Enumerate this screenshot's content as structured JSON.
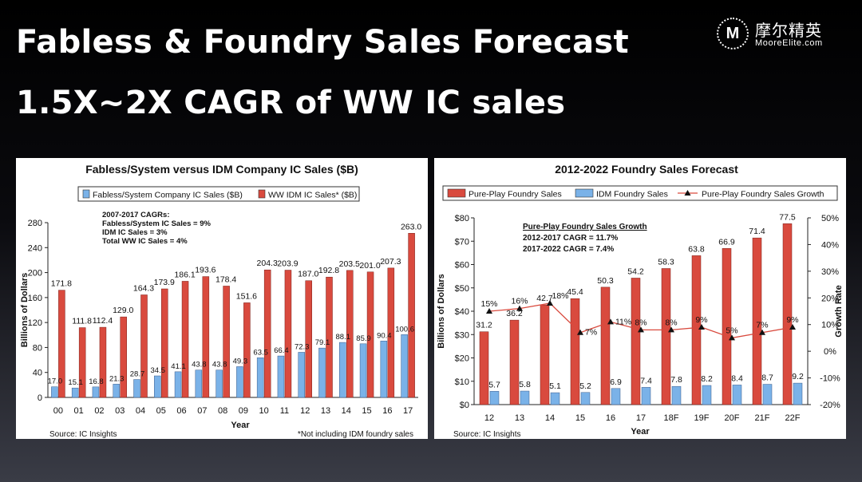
{
  "header": {
    "title_line1": "Fabless & Foundry Sales Forecast",
    "title_line2": "1.5X~2X CAGR of WW IC sales"
  },
  "logo": {
    "mark": "M",
    "name_cn": "摩尔精英",
    "name_en": "MooreElite.com"
  },
  "chart_data": [
    {
      "type": "bar",
      "title": "Fabless/System versus IDM Company IC Sales ($B)",
      "xlabel": "Year",
      "ylabel": "Billions of Dollars",
      "ylim": [
        0,
        280
      ],
      "yticks": [
        0,
        40,
        80,
        120,
        160,
        200,
        240,
        280
      ],
      "categories": [
        "00",
        "01",
        "02",
        "03",
        "04",
        "05",
        "06",
        "07",
        "08",
        "09",
        "10",
        "11",
        "12",
        "13",
        "14",
        "15",
        "16",
        "17"
      ],
      "series": [
        {
          "name": "Fabless/System Company IC Sales ($B)",
          "color": "#7ab2e8",
          "values": [
            17.0,
            15.1,
            16.8,
            21.3,
            28.7,
            34.5,
            41.1,
            43.8,
            43.8,
            49.3,
            63.5,
            66.4,
            72.3,
            79.1,
            88.1,
            85.9,
            90.4,
            100.6
          ]
        },
        {
          "name": "WW IDM IC Sales* ($B)",
          "color": "#d94a3e",
          "values": [
            171.8,
            111.8,
            112.4,
            129.0,
            164.3,
            173.9,
            186.1,
            193.6,
            178.4,
            151.6,
            204.3,
            203.9,
            187.0,
            192.8,
            203.5,
            201.0,
            207.3,
            263.0
          ]
        }
      ],
      "annotation": [
        "2007-2017 CAGRs:",
        "Fabless/System IC Sales = 9%",
        "IDM IC Sales = 3%",
        "Total WW IC Sales = 4%"
      ],
      "source": "Source: IC Insights",
      "footnote": "*Not including IDM foundry sales",
      "legend": "top"
    },
    {
      "type": "bar",
      "title": "2012-2022 Foundry Sales Forecast",
      "xlabel": "Year",
      "ylabel": "Billions of Dollars",
      "y2label": "Growth Rate",
      "ylim": [
        0,
        80
      ],
      "yticks": [
        "$0",
        "$10",
        "$20",
        "$30",
        "$40",
        "$50",
        "$60",
        "$70",
        "$80"
      ],
      "y2lim": [
        -20,
        50
      ],
      "y2ticks": [
        "-20%",
        "-10%",
        "0%",
        "10%",
        "20%",
        "30%",
        "40%",
        "50%"
      ],
      "categories": [
        "12",
        "13",
        "14",
        "15",
        "16",
        "17",
        "18F",
        "19F",
        "20F",
        "21F",
        "22F"
      ],
      "series": [
        {
          "name": "Pure-Play Foundry Sales",
          "color": "#d94a3e",
          "values": [
            31.2,
            36.2,
            42.7,
            45.4,
            50.3,
            54.2,
            58.3,
            63.8,
            66.9,
            71.4,
            77.5
          ]
        },
        {
          "name": "IDM Foundry Sales",
          "color": "#7ab2e8",
          "values": [
            5.7,
            5.8,
            5.1,
            5.2,
            6.9,
            7.4,
            7.8,
            8.2,
            8.4,
            8.7,
            9.2
          ]
        },
        {
          "name": "Pure-Play Foundry Sales Growth",
          "type": "line",
          "color": "#d94a3e",
          "values": [
            15,
            16,
            18,
            7,
            11,
            8,
            8,
            9,
            5,
            7,
            9
          ],
          "labels": [
            "15%",
            "16%",
            "18%",
            "7%",
            "11%",
            "8%",
            "8%",
            "9%",
            "5%",
            "7%",
            "9%"
          ]
        }
      ],
      "annotation": [
        "Pure-Play Foundry Sales Growth",
        "2012-2017 CAGR = 11.7%",
        "2017-2022 CAGR = 7.4%"
      ],
      "source": "Source: IC Insights",
      "legend": "top"
    }
  ]
}
